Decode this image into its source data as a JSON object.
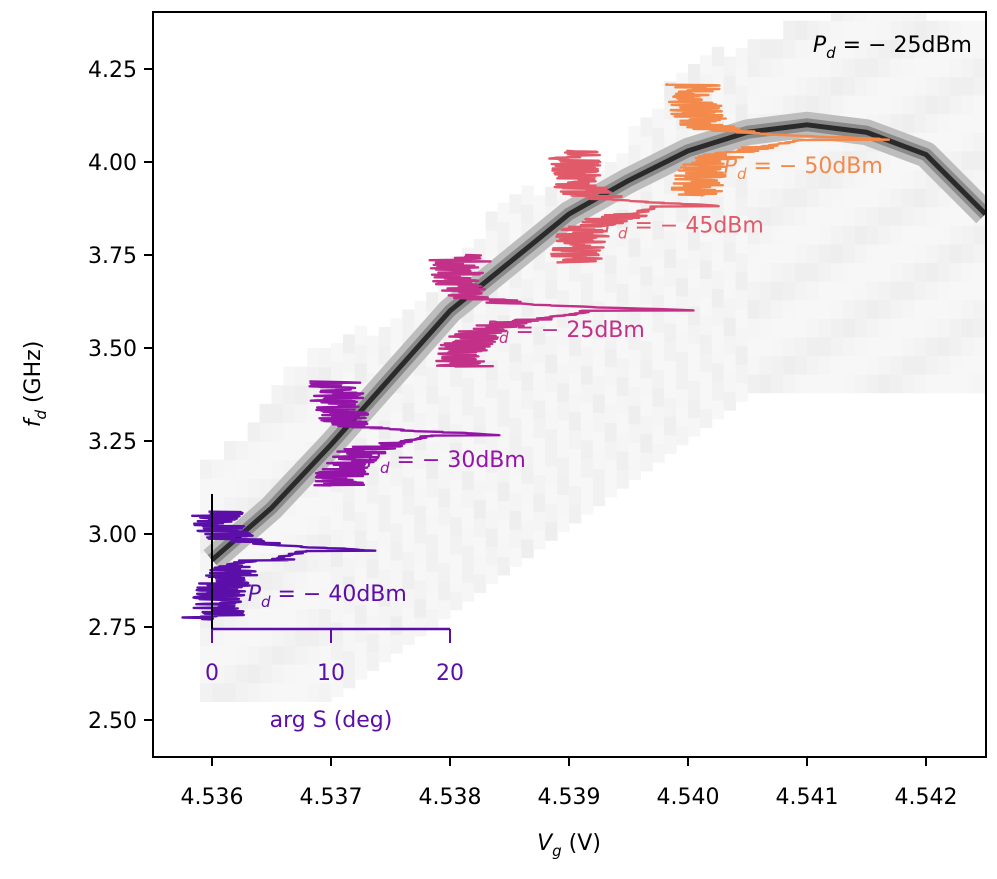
{
  "chart_data": {
    "type": "line",
    "background": "grayscale heatmap of response vs gate voltage and drive frequency; dark resonance arc from (4.5360 V, 2.95 GHz) through (4.5385 V, 3.72 GHz) and (4.5395 V, 3.94 GHz) to a maximum near (4.5410 V, 4.10 GHz), then down to (4.5425 V, 3.85 GHz)",
    "xlabel": {
      "sym": "V",
      "sub": "g",
      "unit": " (V)"
    },
    "ylabel": {
      "sym": "f",
      "sub": "d",
      "unit": " (GHz)"
    },
    "xlim": [
      4.5355,
      4.5425
    ],
    "ylim": [
      2.4,
      4.43
    ],
    "xticks": [
      "4.536",
      "4.537",
      "4.538",
      "4.539",
      "4.540",
      "4.541",
      "4.542"
    ],
    "yticks": [
      "2.50",
      "2.75",
      "3.00",
      "3.25",
      "3.50",
      "3.75",
      "4.00",
      "4.25"
    ],
    "corner_label": {
      "sym": "P",
      "sub": "d",
      "text": " = − 25dBm"
    },
    "inset_axis": {
      "label": "arg S (deg)",
      "ticks": [
        "0",
        "10",
        "20"
      ],
      "deg_per_volt_scale": "20 deg spans 0.002 V",
      "color": "#5b0fa8"
    },
    "series": [
      {
        "name": "Pd = −40dBm",
        "label_text": " = − 40dBm",
        "color": "#5b0fa8",
        "x0": 4.536,
        "f0": 2.955,
        "peak_deg": 13.0,
        "fmin": 2.77,
        "fmax": 3.06,
        "label_pos": [
          4.5363,
          2.82
        ]
      },
      {
        "name": "Pd = −30dBm",
        "label_text": " = − 30dBm",
        "color": "#9414a8",
        "x0": 4.537,
        "f0": 3.265,
        "peak_deg": 14.0,
        "fmin": 3.13,
        "fmax": 3.41,
        "label_pos": [
          4.5373,
          3.18
        ]
      },
      {
        "name": "Pd = −25dBm",
        "label_text": " = − 25dBm",
        "color": "#c23088",
        "x0": 4.538,
        "f0": 3.6,
        "peak_deg": 20.0,
        "fmin": 3.45,
        "fmax": 3.75,
        "label_pos": [
          4.5383,
          3.53
        ]
      },
      {
        "name": "Pd = −45dBm",
        "label_text": " = − 45dBm",
        "color": "#e05a6a",
        "x0": 4.539,
        "f0": 3.88,
        "peak_deg": 12.5,
        "fmin": 3.73,
        "fmax": 4.03,
        "label_pos": [
          4.5393,
          3.81
        ]
      },
      {
        "name": "Pd = −50dBm",
        "label_text": " = − 50dBm",
        "color": "#f3894a",
        "x0": 4.54,
        "f0": 4.06,
        "peak_deg": 16.0,
        "fmin": 3.91,
        "fmax": 4.21,
        "label_pos": [
          4.5403,
          3.97
        ]
      }
    ]
  }
}
